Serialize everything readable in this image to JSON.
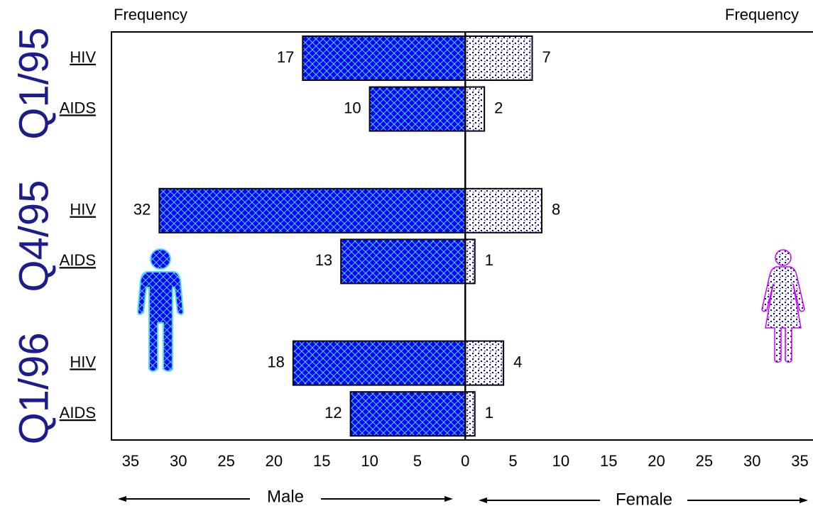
{
  "chart_data": {
    "type": "butterfly-bar",
    "x_label_left": "Frequency",
    "x_label_right": "Frequency",
    "groups": [
      {
        "name": "Q1/95",
        "categories": [
          "HIV",
          "AIDS"
        ]
      },
      {
        "name": "Q4/95",
        "categories": [
          "HIV",
          "AIDS"
        ]
      },
      {
        "name": "Q1/96",
        "categories": [
          "HIV",
          "AIDS"
        ]
      }
    ],
    "series": [
      {
        "name": "Male",
        "side": "left",
        "color": "#0000ff",
        "values": [
          17,
          10,
          32,
          13,
          18,
          12
        ]
      },
      {
        "name": "Female",
        "side": "right",
        "color": "#ffffff",
        "values": [
          7,
          2,
          8,
          1,
          4,
          1
        ]
      }
    ],
    "xlim": [
      -37,
      36
    ],
    "xticks": [
      {
        "value": -35,
        "label": "35"
      },
      {
        "value": -30,
        "label": "30"
      },
      {
        "value": -25,
        "label": "25"
      },
      {
        "value": -20,
        "label": "20"
      },
      {
        "value": -15,
        "label": "15"
      },
      {
        "value": -10,
        "label": "10"
      },
      {
        "value": -5,
        "label": "5"
      },
      0,
      5,
      10,
      15,
      20,
      25,
      30,
      35
    ]
  }
}
